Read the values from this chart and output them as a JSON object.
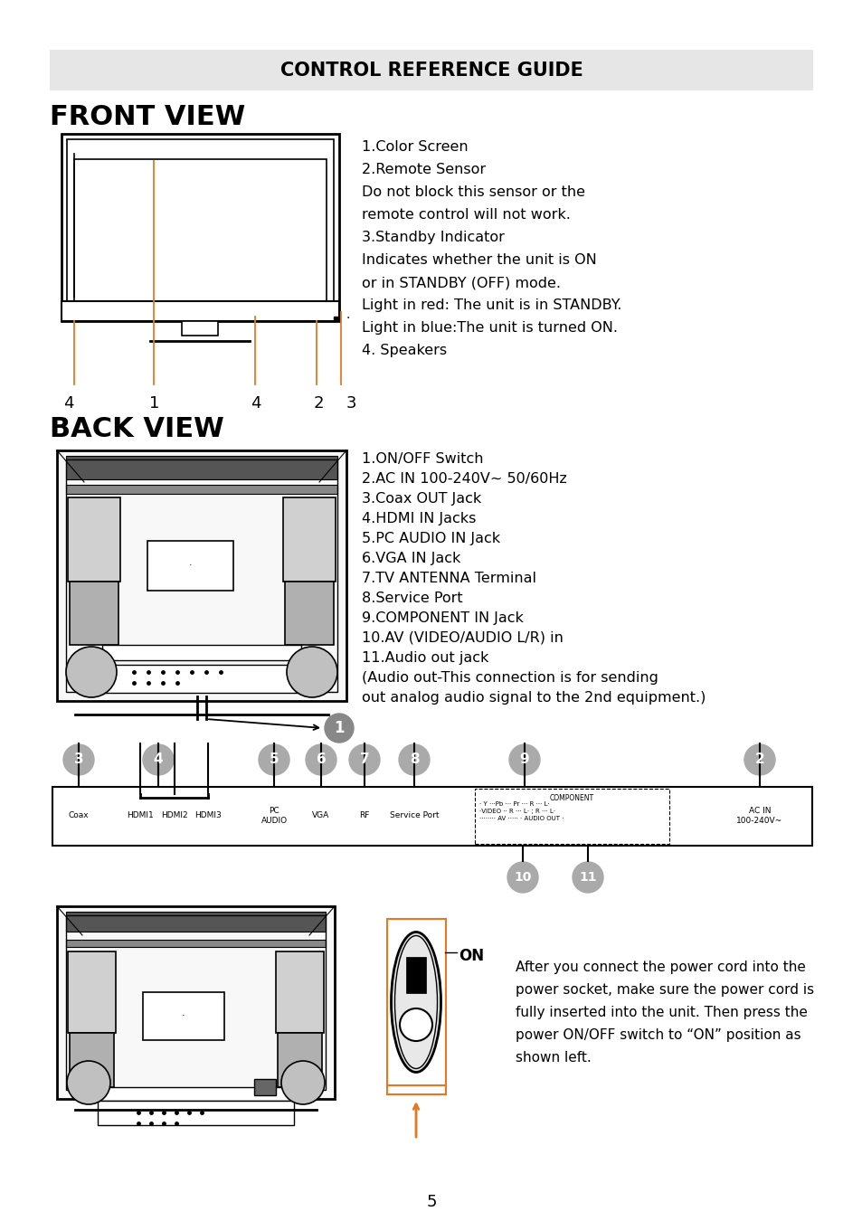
{
  "title": "CONTROL REFERENCE GUIDE",
  "title_bg": "#e8e8e8",
  "front_view_title": "FRONT VIEW",
  "back_view_title": "BACK VIEW",
  "front_view_text": [
    "1.Color Screen",
    "2.Remote Sensor",
    "Do not block this sensor or the",
    "remote control will not work.",
    "3.Standby Indicator",
    "Indicates whether the unit is ON",
    "or in STANDBY (OFF) mode.",
    "Light in red: The unit is in STANDBY.",
    "Light in blue:The unit is turned ON.",
    "4. Speakers"
  ],
  "back_view_text": [
    "1.ON/OFF Switch",
    "2.AC IN 100-240V~ 50/60Hz",
    "3.Coax OUT Jack",
    "4.HDMI IN Jacks",
    "5.PC AUDIO IN Jack",
    "6.VGA IN Jack",
    "7.TV ANTENNA Terminal",
    "8.Service Port",
    "9.COMPONENT IN Jack",
    "10.AV (VIDEO/AUDIO L/R) in",
    "11.Audio out jack",
    "(Audio out-This connection is for sending",
    "out analog audio signal to the 2nd equipment.)"
  ],
  "on_text": "ON",
  "on_description_plain": [
    "After you connect the power cord into the",
    "power socket, make sure the power cord is",
    "fully inserted into the unit. Then press the",
    "shown left."
  ],
  "on_description_bold_line": "power ON/OFF switch to “ON” position as",
  "page_number": "5",
  "orange_color": "#e87722",
  "bg_color": "#ffffff",
  "text_color": "#000000",
  "gray_circle_color": "#aaaaaa",
  "light_gray": "#e6e6e6",
  "mid_gray": "#c8c8c8",
  "dark_gray": "#888888"
}
